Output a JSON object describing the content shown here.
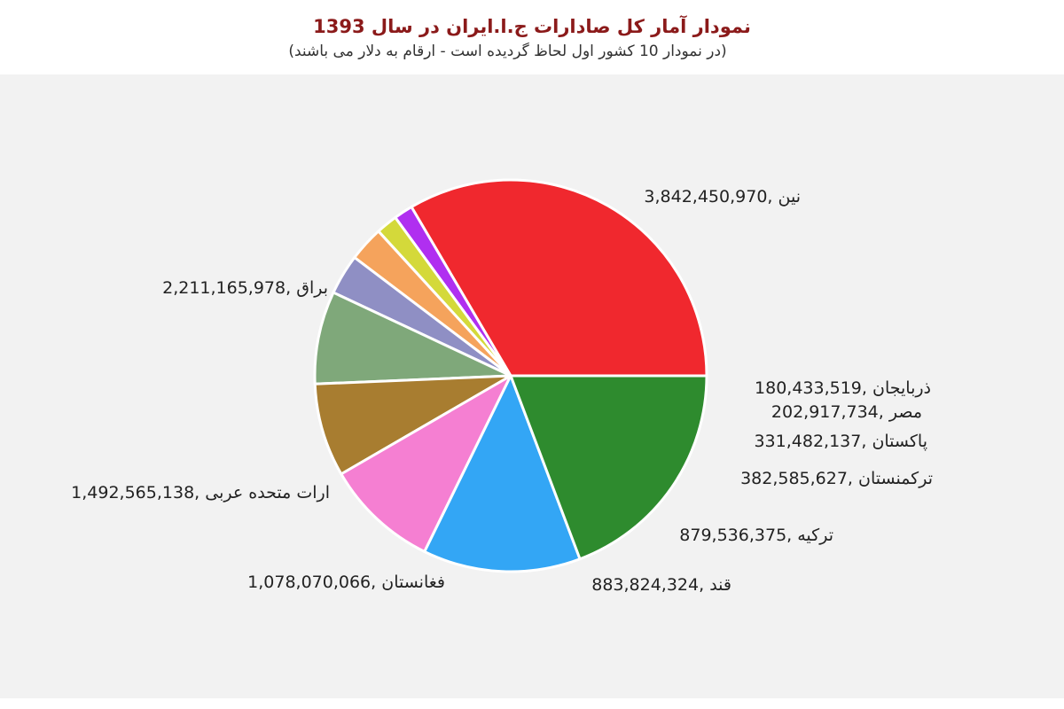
{
  "chart_data": {
    "type": "pie",
    "title": "نمودار آمار کل صادارات ج.ا.ایران در سال 1393",
    "subtitle": "(در نمودار 10 کشور اول لحاظ گردیده است - ارقام به دلار می باشند)",
    "slices": [
      {
        "label": "نین",
        "value": 3842450970,
        "value_text": "3,842,450,970",
        "color": "#f0282e"
      },
      {
        "label": "ذربایجان",
        "value": 180433519,
        "value_text": "180,433,519",
        "color": "#b02ff0"
      },
      {
        "label": "مصر",
        "value": 202917734,
        "value_text": "202,917,734",
        "color": "#d4d93a"
      },
      {
        "label": "پاکستان",
        "value": 331482137,
        "value_text": "331,482,137",
        "color": "#f5a35c"
      },
      {
        "label": "ترکمنستان",
        "value": 382585627,
        "value_text": "382,585,627",
        "color": "#8f8fc4"
      },
      {
        "label": "ترکیه",
        "value": 879536375,
        "value_text": "879,536,375",
        "color": "#7fa87a"
      },
      {
        "label": "قند",
        "value": 883824324,
        "value_text": "883,824,324",
        "color": "#a87d30"
      },
      {
        "label": "فغانستان",
        "value": 1078070066,
        "value_text": "1,078,070,066",
        "color": "#f57fd2"
      },
      {
        "label": "ارات متحده عربی",
        "value": 1492565138,
        "value_text": "1,492,565,138",
        "color": "#33a6f5"
      },
      {
        "label": "براق",
        "value": 2211165978,
        "value_text": "2,211,165,978",
        "color": "#2e8b2e"
      }
    ]
  }
}
